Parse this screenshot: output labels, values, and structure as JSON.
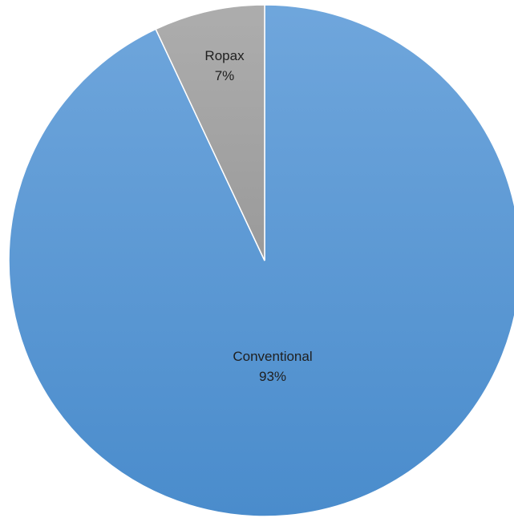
{
  "chart_data": {
    "type": "pie",
    "start_angle_deg": 0,
    "direction": "clockwise",
    "slices": [
      {
        "label": "Conventional",
        "value": 93,
        "display": "93%",
        "color": "#5b9bd5",
        "gradient_top": "#6fa6dc",
        "gradient_bottom": "#4a8ccc"
      },
      {
        "label": "Ropax",
        "value": 7,
        "display": "7%",
        "color": "#a5a5a5",
        "gradient_top": "#adadad",
        "gradient_bottom": "#9a9a9a"
      }
    ]
  }
}
